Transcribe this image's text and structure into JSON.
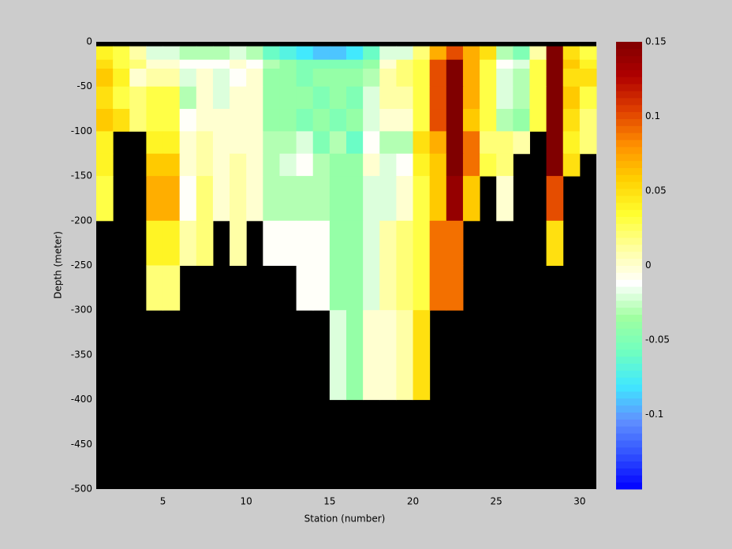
{
  "chart_data": {
    "type": "heatmap",
    "xlabel": "Station (number)",
    "ylabel": "Depth (meter)",
    "xlim": [
      1,
      31
    ],
    "xticks": [
      5,
      10,
      15,
      20,
      25,
      30
    ],
    "ylim": [
      -500,
      0
    ],
    "yticks": [
      0,
      -50,
      -100,
      -150,
      -200,
      -250,
      -300,
      -350,
      -400,
      -450,
      -500
    ],
    "clim": [
      -0.15,
      0.15
    ],
    "cticks": [
      0.15,
      0.1,
      0.05,
      0,
      -0.05,
      -0.1
    ],
    "colormap": [
      "#0000ff",
      "#3050ff",
      "#6090ff",
      "#40e8ff",
      "#70ffc0",
      "#a0ffa0",
      "#ffffff",
      "#ffffa0",
      "#ffff30",
      "#ffd000",
      "#ff9000",
      "#e04000",
      "#b00000",
      "#800000"
    ],
    "axes_color": "#000000",
    "figure_color": "#cccccc",
    "x_edges": [
      1,
      2,
      3,
      4,
      5,
      6,
      7,
      8,
      9,
      10,
      11,
      12,
      13,
      14,
      15,
      16,
      17,
      18,
      19,
      20,
      21,
      22,
      23,
      24,
      25,
      26,
      27,
      28,
      29,
      30,
      31
    ],
    "y_edges": [
      -5,
      -20,
      -30,
      -50,
      -75,
      -100,
      -125,
      -150,
      -200,
      -250,
      -300,
      -400
    ],
    "z": [
      [
        0.04,
        0.03,
        0.01,
        -0.02,
        -0.02,
        -0.03,
        -0.03,
        -0.03,
        -0.02,
        -0.03,
        -0.06,
        -0.07,
        -0.08,
        -0.09,
        -0.09,
        -0.08,
        -0.06,
        -0.02,
        -0.02,
        0.02,
        0.07,
        0.1,
        0.07,
        0.05,
        -0.03,
        -0.05,
        0.01,
        0.15,
        0.05,
        0.03
      ],
      [
        0.05,
        0.03,
        0.02,
        0,
        0,
        -0.01,
        -0.01,
        -0.01,
        0,
        -0.01,
        -0.03,
        -0.04,
        -0.05,
        -0.05,
        -0.05,
        -0.05,
        -0.04,
        0,
        0.02,
        0.03,
        0.1,
        0.15,
        0.07,
        0.03,
        -0.01,
        -0.02,
        0.03,
        0.15,
        0.06,
        0.04
      ],
      [
        0.06,
        0.04,
        0,
        0.01,
        0.01,
        -0.02,
        0,
        -0.02,
        -0.01,
        0,
        -0.04,
        -0.04,
        -0.05,
        -0.04,
        -0.04,
        -0.04,
        -0.03,
        0.01,
        0.02,
        0.03,
        0.1,
        0.15,
        0.07,
        0.03,
        -0.02,
        -0.03,
        0.03,
        0.15,
        0.05,
        0.05
      ],
      [
        0.05,
        0.03,
        0.02,
        0.03,
        0.03,
        -0.03,
        0,
        -0.02,
        0,
        0,
        -0.04,
        -0.04,
        -0.04,
        -0.05,
        -0.04,
        -0.05,
        -0.02,
        0.01,
        0.01,
        0.03,
        0.1,
        0.15,
        0.07,
        0.03,
        -0.02,
        -0.03,
        0.03,
        0.15,
        0.06,
        0.03
      ],
      [
        0.06,
        0.05,
        0.02,
        0.03,
        0.03,
        -0.01,
        0,
        0,
        0,
        0,
        -0.04,
        -0.04,
        -0.05,
        -0.04,
        -0.05,
        -0.04,
        -0.02,
        0,
        0,
        0.03,
        0.1,
        0.15,
        0.06,
        0.03,
        -0.03,
        -0.04,
        0.03,
        0.15,
        0.05,
        0.02
      ],
      [
        0.04,
        null,
        null,
        0.04,
        0.04,
        0,
        0.01,
        0,
        0,
        0,
        -0.03,
        -0.03,
        -0.02,
        -0.05,
        -0.03,
        -0.06,
        -0.01,
        -0.03,
        -0.03,
        0.05,
        0.07,
        0.15,
        0.09,
        0.02,
        0.02,
        0.01,
        null,
        0.15,
        0.04,
        0.02
      ],
      [
        0.04,
        null,
        null,
        0.06,
        0.06,
        0,
        0.01,
        0,
        0.01,
        0,
        -0.03,
        -0.02,
        -0.01,
        -0.03,
        -0.04,
        -0.04,
        0,
        -0.02,
        -0.01,
        0.04,
        0.06,
        0.15,
        0.09,
        0.03,
        0.02,
        null,
        null,
        0.15,
        0.05,
        null
      ],
      [
        0.03,
        null,
        null,
        0.07,
        0.07,
        -0.01,
        0.02,
        0,
        0.01,
        0,
        -0.03,
        -0.03,
        -0.03,
        -0.03,
        -0.04,
        -0.04,
        -0.02,
        -0.02,
        0,
        0.03,
        0.06,
        0.14,
        0.06,
        null,
        0,
        null,
        null,
        0.1,
        null,
        null
      ],
      [
        null,
        null,
        null,
        0.04,
        0.04,
        0.01,
        0.02,
        null,
        0.01,
        null,
        -0.01,
        -0.01,
        -0.01,
        -0.01,
        -0.04,
        -0.04,
        -0.02,
        0.01,
        0.02,
        0.03,
        0.09,
        0.09,
        null,
        null,
        null,
        null,
        null,
        0.05,
        null,
        null
      ],
      [
        null,
        null,
        null,
        0.02,
        0.02,
        null,
        null,
        null,
        null,
        null,
        null,
        null,
        -0.01,
        -0.01,
        -0.04,
        -0.04,
        -0.02,
        0.01,
        0.02,
        0.03,
        0.09,
        0.09,
        null,
        null,
        null,
        null,
        null,
        null,
        null,
        null
      ],
      [
        null,
        null,
        null,
        null,
        null,
        null,
        null,
        null,
        null,
        null,
        null,
        null,
        null,
        null,
        -0.02,
        -0.04,
        0,
        0,
        0.01,
        0.05,
        null,
        null,
        null,
        null,
        null,
        null,
        null,
        null,
        null,
        null
      ]
    ]
  }
}
